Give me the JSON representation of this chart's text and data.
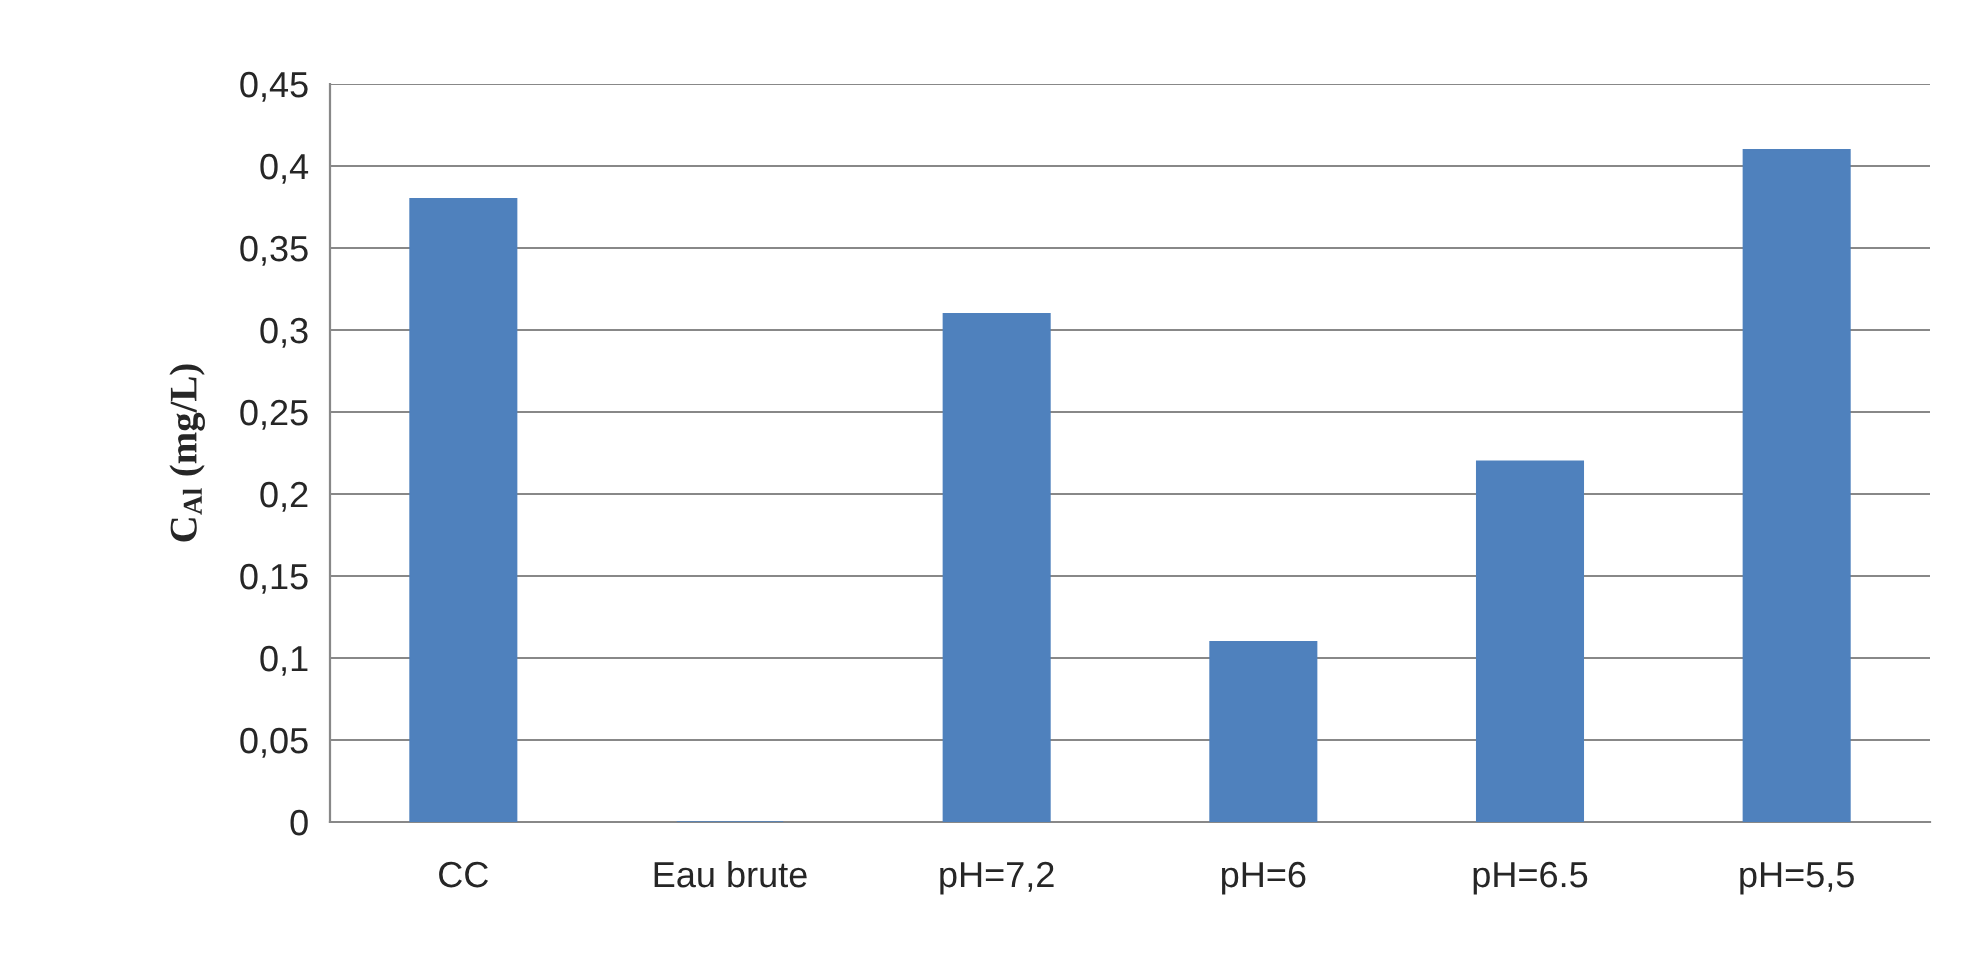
{
  "chart_data": {
    "type": "bar",
    "ylabel": "C$_{Al}$ (mg/L)",
    "categories": [
      "CC",
      "Eau brute",
      "pH=7,2",
      "pH=6",
      "pH=6.5",
      "pH=5,5"
    ],
    "values": [
      0.38,
      0,
      0.31,
      0.11,
      0.22,
      0.41
    ],
    "color": "#4f81bd",
    "ylim": [
      0,
      0.45
    ],
    "yticks": [
      0,
      {
        "value": 0.05,
        "label": "0,05"
      },
      {
        "value": 0.1,
        "label": "0,1"
      },
      {
        "value": 0.15,
        "label": "0,15"
      },
      {
        "value": 0.2,
        "label": "0,2"
      },
      {
        "value": 0.25,
        "label": "0,25"
      },
      {
        "value": 0.3,
        "label": "0,3"
      },
      {
        "value": 0.35,
        "label": "0,35"
      },
      {
        "value": 0.4,
        "label": "0,4"
      },
      {
        "value": 0.45,
        "label": "0,45"
      }
    ],
    "grid": "y"
  }
}
